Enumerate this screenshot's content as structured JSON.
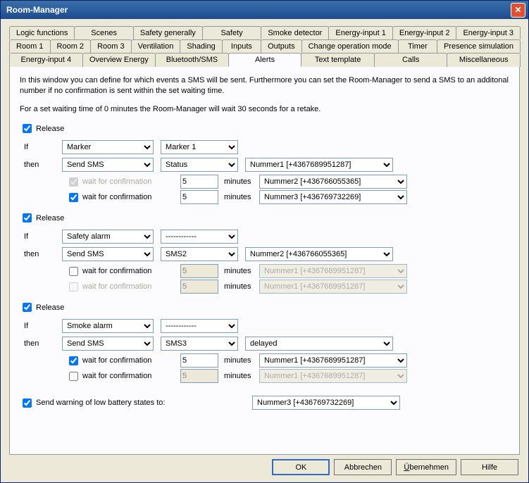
{
  "window": {
    "title": "Room-Manager"
  },
  "tabs": {
    "row1": [
      "Logic functions",
      "Scenes",
      "Safety generally",
      "Safety",
      "Smoke detector",
      "Energy-input 1",
      "Energy-input 2",
      "Energy-input 3"
    ],
    "row2": [
      "Room 1",
      "Room 2",
      "Room 3",
      "Ventilation",
      "Shading",
      "Inputs",
      "Outputs",
      "Change operation mode",
      "Timer",
      "Presence simulation"
    ],
    "row3": [
      "Energy-input 4",
      "Overview Energy",
      "Bluetooth/SMS",
      "Alerts",
      "Text template",
      "Calls",
      "Miscellaneous"
    ],
    "active": "Alerts"
  },
  "desc1": "In this window you can define for which events a SMS will be sent. Furthermore you can set the Room-Manager to send a SMS to an additonal number if no confirmation is sent within the set waiting time.",
  "desc2": "For a set waiting time of 0 minutes the Room-Manager will wait 30 seconds for a retake.",
  "labels": {
    "release": "Release",
    "if": "If",
    "then": "then",
    "wait": "wait for confirmation",
    "minutes": "minutes",
    "battery": "Send warning of low battery states to:"
  },
  "rule1": {
    "release": true,
    "if_type": "Marker",
    "if_val": "Marker 1",
    "then_action": "Send SMS",
    "then_type": "Status",
    "num_a": "Nummer1 [+4367689951287]",
    "wait1_chk": true,
    "wait1_dis": true,
    "wait1_min": "5",
    "wait1_num": "Nummer2 [+436766055365]",
    "wait2_chk": true,
    "wait2_min": "5",
    "wait2_num": "Nummer3 [+436769732269]"
  },
  "rule2": {
    "release": true,
    "if_type": "Safety alarm",
    "if_val": "------------",
    "then_action": "Send SMS",
    "then_type": "SMS2",
    "num_a": "Nummer2 [+436766055365]",
    "wait1_chk": false,
    "wait1_min": "5",
    "wait1_num": "Nummer1 [+4367689951287]",
    "wait2_chk": false,
    "wait2_dis": true,
    "wait2_min": "5",
    "wait2_num": "Nummer1 [+4367689951287]"
  },
  "rule3": {
    "release": true,
    "if_type": "Smoke alarm",
    "if_val": "------------",
    "then_action": "Send SMS",
    "then_type": "SMS3",
    "num_a": "delayed",
    "wait1_chk": true,
    "wait1_min": "5",
    "wait1_num": "Nummer1 [+4367689951287]",
    "wait2_chk": false,
    "wait2_min": "5",
    "wait2_num": "Nummer1 [+4367689951287]"
  },
  "battery": {
    "chk": true,
    "num": "Nummer3 [+436769732269]"
  },
  "buttons": {
    "ok": "OK",
    "cancel": "Abbrechen",
    "apply": "Übernehmen",
    "help": "Hilfe"
  }
}
